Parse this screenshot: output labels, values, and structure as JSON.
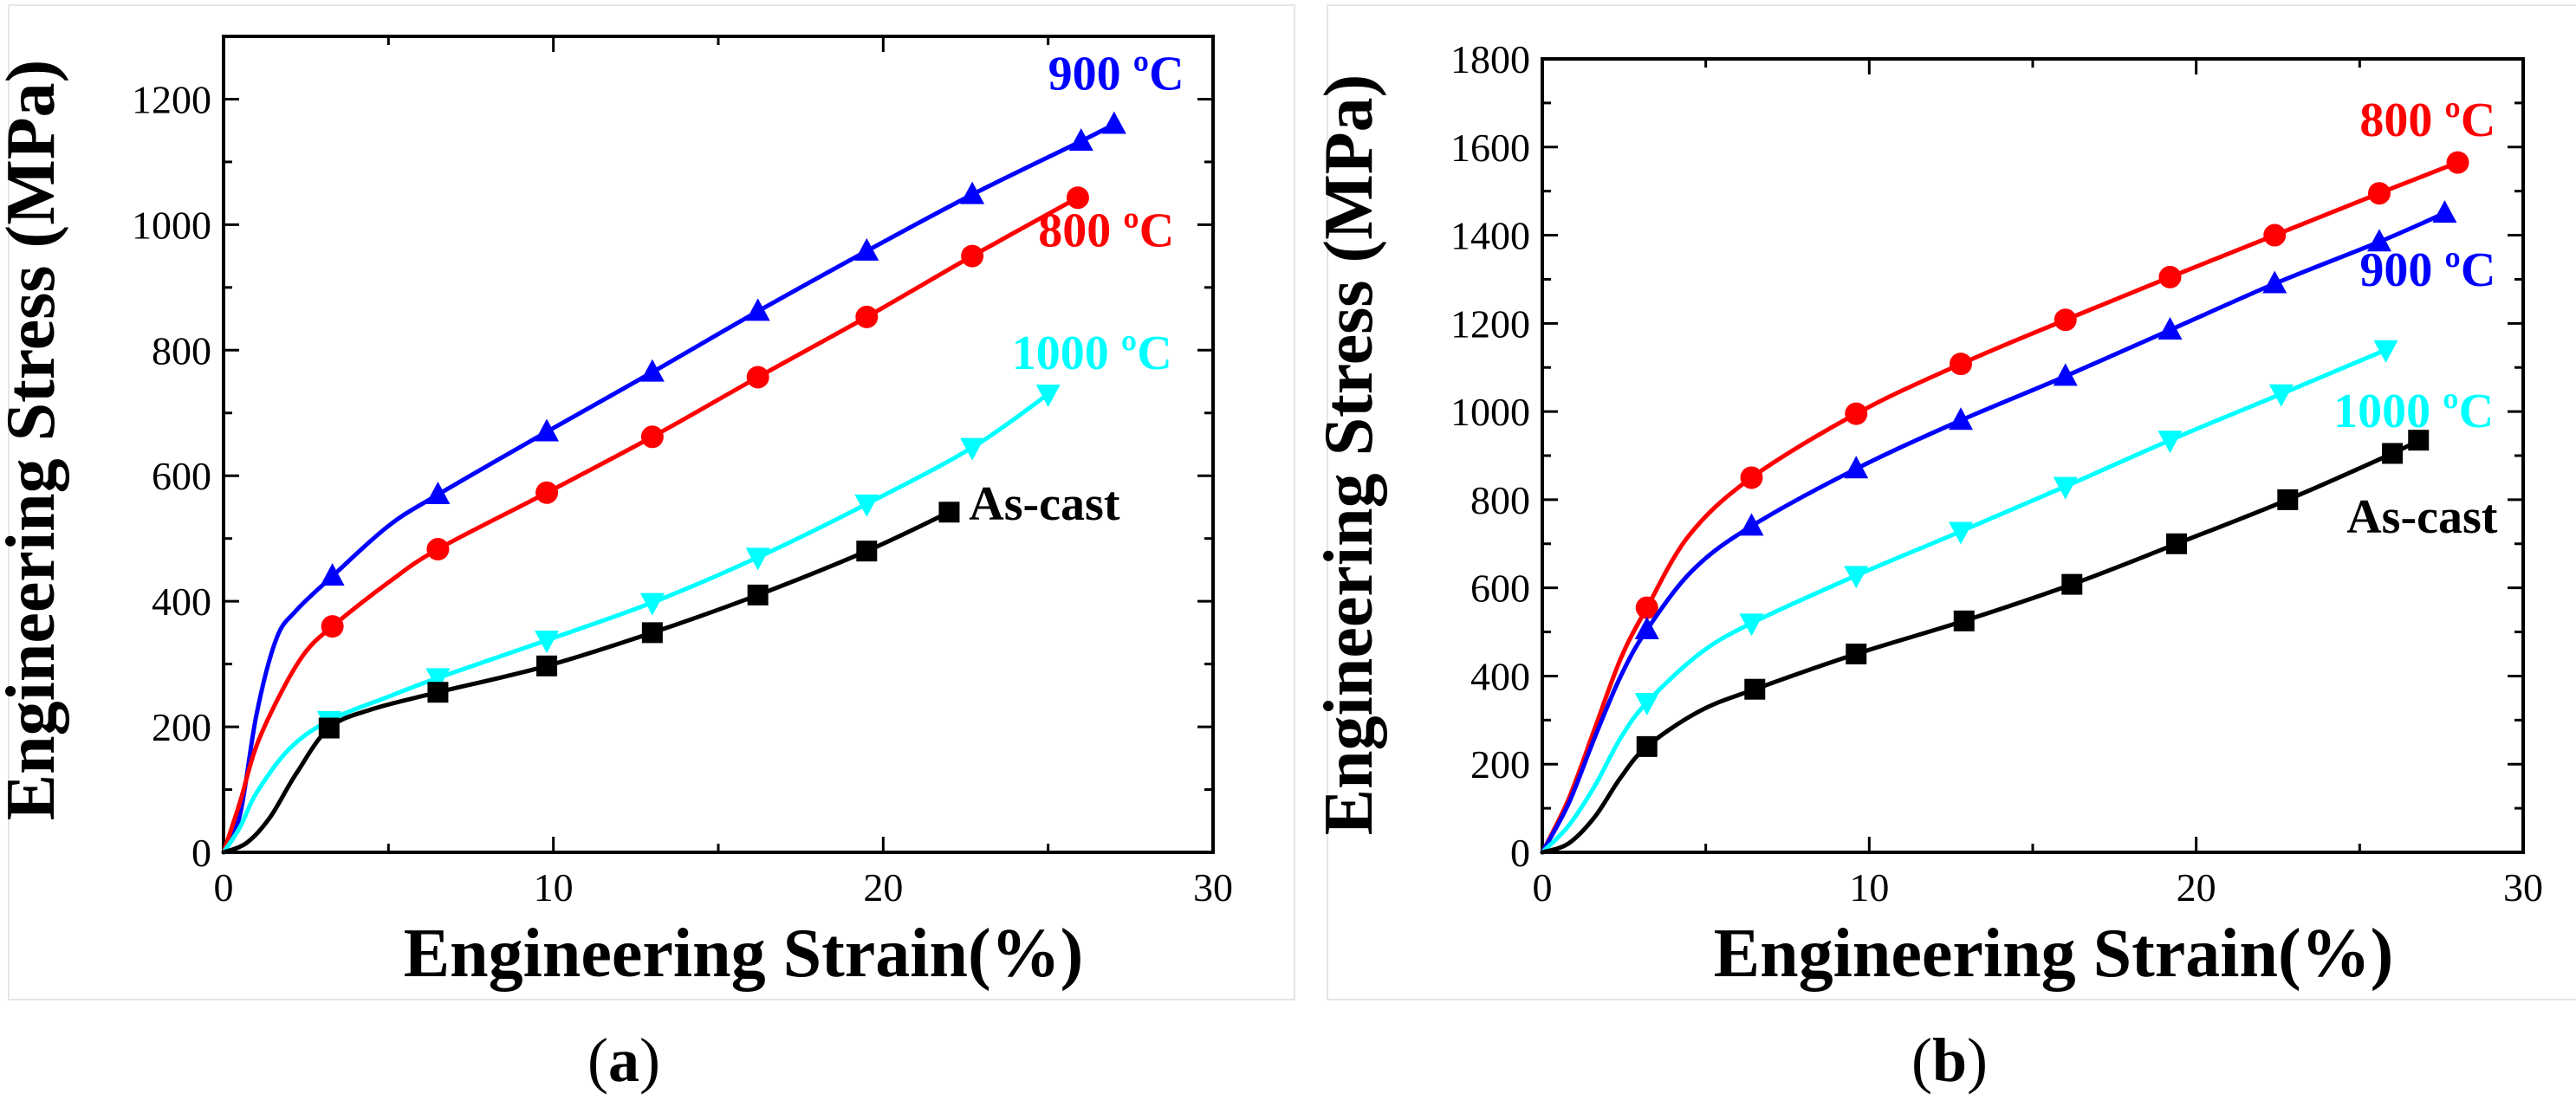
{
  "chart_data": [
    {
      "type": "line",
      "panel": "(a)",
      "panel_open": "(",
      "panel_letter": "a",
      "panel_close": ")",
      "xlabel": "Engineering Strain(%)",
      "ylabel": "Engineering Stress (MPa)",
      "xlim": [
        0,
        30
      ],
      "ylim": [
        0,
        1300
      ],
      "xticks": [
        0,
        10,
        20,
        30
      ],
      "yticks": [
        0,
        200,
        400,
        600,
        800,
        1000,
        1200
      ],
      "series": [
        {
          "name": "900 ºC",
          "label": "900 ºC",
          "color": "#0000ff",
          "marker": "triangle-up",
          "label_at": [
            25.0,
            1215
          ],
          "curve": [
            [
              0,
              0
            ],
            [
              0.5,
              60
            ],
            [
              1.0,
              220
            ],
            [
              1.6,
              340
            ],
            [
              2.2,
              385
            ],
            [
              3.3,
              440
            ],
            [
              5.0,
              520
            ],
            [
              6.5,
              570
            ],
            [
              9.8,
              670
            ],
            [
              13.0,
              765
            ],
            [
              16.2,
              862
            ],
            [
              19.5,
              958
            ],
            [
              22.7,
              1048
            ],
            [
              26.0,
              1133
            ],
            [
              27.0,
              1160
            ]
          ],
          "markers": [
            [
              3.3,
              440
            ],
            [
              6.5,
              570
            ],
            [
              9.8,
              670
            ],
            [
              13.0,
              765
            ],
            [
              16.2,
              862
            ],
            [
              19.5,
              958
            ],
            [
              22.7,
              1048
            ],
            [
              26.0,
              1133
            ],
            [
              27.0,
              1160
            ]
          ]
        },
        {
          "name": "800 ºC",
          "label": "800 ºC",
          "color": "#ff0000",
          "marker": "circle",
          "label_at": [
            24.7,
            965
          ],
          "curve": [
            [
              0,
              0
            ],
            [
              0.5,
              80
            ],
            [
              1.0,
              170
            ],
            [
              1.8,
              260
            ],
            [
              2.5,
              320
            ],
            [
              3.3,
              360
            ],
            [
              5.0,
              430
            ],
            [
              6.5,
              483
            ],
            [
              9.8,
              573
            ],
            [
              13.0,
              662
            ],
            [
              16.2,
              757
            ],
            [
              19.5,
              853
            ],
            [
              22.7,
              950
            ],
            [
              25.9,
              1043
            ]
          ],
          "markers": [
            [
              3.3,
              360
            ],
            [
              6.5,
              483
            ],
            [
              9.8,
              573
            ],
            [
              13.0,
              662
            ],
            [
              16.2,
              757
            ],
            [
              19.5,
              853
            ],
            [
              22.7,
              950
            ],
            [
              25.9,
              1043
            ]
          ]
        },
        {
          "name": "1000 ºC",
          "label": "1000 ºC",
          "color": "#00ffff",
          "marker": "triangle-down",
          "label_at": [
            23.9,
            770
          ],
          "curve": [
            [
              0,
              0
            ],
            [
              0.5,
              40
            ],
            [
              1.0,
              95
            ],
            [
              2.0,
              165
            ],
            [
              3.2,
              210
            ],
            [
              5.0,
              248
            ],
            [
              6.5,
              278
            ],
            [
              9.8,
              338
            ],
            [
              13.0,
              398
            ],
            [
              16.2,
              470
            ],
            [
              19.5,
              555
            ],
            [
              22.7,
              645
            ],
            [
              25.0,
              730
            ]
          ],
          "markers": [
            [
              3.2,
              210
            ],
            [
              6.5,
              278
            ],
            [
              9.8,
              338
            ],
            [
              13.0,
              398
            ],
            [
              16.2,
              470
            ],
            [
              19.5,
              555
            ],
            [
              22.7,
              645
            ],
            [
              25.0,
              730
            ]
          ]
        },
        {
          "name": "As-cast",
          "label": "As-cast",
          "color": "#000000",
          "marker": "square",
          "label_at": [
            22.6,
            530
          ],
          "curve": [
            [
              0,
              0
            ],
            [
              0.7,
              15
            ],
            [
              1.4,
              55
            ],
            [
              2.2,
              125
            ],
            [
              3.2,
              198
            ],
            [
              4.5,
              228
            ],
            [
              6.5,
              255
            ],
            [
              9.8,
              297
            ],
            [
              13.0,
              350
            ],
            [
              16.2,
              410
            ],
            [
              19.5,
              480
            ],
            [
              22.0,
              542
            ]
          ],
          "markers": [
            [
              3.2,
              198
            ],
            [
              6.5,
              255
            ],
            [
              9.8,
              297
            ],
            [
              13.0,
              350
            ],
            [
              16.2,
              410
            ],
            [
              19.5,
              480
            ],
            [
              22.0,
              542
            ]
          ]
        }
      ]
    },
    {
      "type": "line",
      "panel": "(b)",
      "panel_open": "(",
      "panel_letter": "b",
      "panel_close": ")",
      "xlabel": "Engineering Strain(%)",
      "ylabel": "Engineering Stress (MPa)",
      "xlim": [
        0,
        30
      ],
      "ylim": [
        0,
        1800
      ],
      "xticks": [
        0,
        10,
        20,
        30
      ],
      "yticks": [
        0,
        200,
        400,
        600,
        800,
        1000,
        1200,
        1400,
        1600,
        1800
      ],
      "series": [
        {
          "name": "800 ºC",
          "label": "800 ºC",
          "color": "#ff0000",
          "marker": "circle",
          "label_at": [
            25.0,
            1625
          ],
          "curve": [
            [
              0,
              0
            ],
            [
              0.8,
              120
            ],
            [
              1.6,
              280
            ],
            [
              2.4,
              440
            ],
            [
              3.2,
              555
            ],
            [
              4.5,
              720
            ],
            [
              6.4,
              850
            ],
            [
              9.6,
              995
            ],
            [
              12.8,
              1108
            ],
            [
              16.0,
              1208
            ],
            [
              19.2,
              1305
            ],
            [
              22.4,
              1400
            ],
            [
              25.6,
              1495
            ],
            [
              28.0,
              1565
            ]
          ],
          "markers": [
            [
              3.2,
              555
            ],
            [
              6.4,
              850
            ],
            [
              9.6,
              995
            ],
            [
              12.8,
              1108
            ],
            [
              16.0,
              1208
            ],
            [
              19.2,
              1305
            ],
            [
              22.4,
              1400
            ],
            [
              25.6,
              1495
            ],
            [
              28.0,
              1565
            ]
          ]
        },
        {
          "name": "900 ºC",
          "label": "900 ºC",
          "color": "#0000ff",
          "marker": "triangle-up",
          "label_at": [
            25.0,
            1285
          ],
          "curve": [
            [
              0,
              0
            ],
            [
              0.8,
              110
            ],
            [
              1.6,
              260
            ],
            [
              2.4,
              400
            ],
            [
              3.2,
              505
            ],
            [
              4.6,
              640
            ],
            [
              6.4,
              740
            ],
            [
              9.6,
              870
            ],
            [
              12.8,
              980
            ],
            [
              16.0,
              1080
            ],
            [
              19.2,
              1185
            ],
            [
              22.4,
              1290
            ],
            [
              25.6,
              1385
            ],
            [
              27.6,
              1450
            ]
          ],
          "markers": [
            [
              3.2,
              505
            ],
            [
              6.4,
              740
            ],
            [
              9.6,
              870
            ],
            [
              12.8,
              980
            ],
            [
              16.0,
              1080
            ],
            [
              19.2,
              1185
            ],
            [
              22.4,
              1290
            ],
            [
              25.6,
              1385
            ],
            [
              27.6,
              1450
            ]
          ]
        },
        {
          "name": "1000 ºC",
          "label": "1000 ºC",
          "color": "#00ffff",
          "marker": "triangle-down",
          "label_at": [
            24.2,
            965
          ],
          "curve": [
            [
              0,
              0
            ],
            [
              0.8,
              60
            ],
            [
              1.6,
              150
            ],
            [
              2.4,
              260
            ],
            [
              3.2,
              340
            ],
            [
              4.8,
              450
            ],
            [
              6.4,
              520
            ],
            [
              9.6,
              628
            ],
            [
              12.8,
              728
            ],
            [
              16.0,
              830
            ],
            [
              19.2,
              935
            ],
            [
              22.6,
              1040
            ],
            [
              25.8,
              1140
            ]
          ],
          "markers": [
            [
              3.2,
              340
            ],
            [
              6.4,
              520
            ],
            [
              9.6,
              628
            ],
            [
              12.8,
              728
            ],
            [
              16.0,
              830
            ],
            [
              19.2,
              935
            ],
            [
              22.6,
              1040
            ],
            [
              25.8,
              1140
            ]
          ]
        },
        {
          "name": "As-cast",
          "label": "As-cast",
          "color": "#000000",
          "marker": "square",
          "label_at": [
            24.6,
            725
          ],
          "curve": [
            [
              0,
              0
            ],
            [
              0.8,
              20
            ],
            [
              1.6,
              80
            ],
            [
              2.4,
              170
            ],
            [
              3.2,
              240
            ],
            [
              4.8,
              320
            ],
            [
              6.5,
              370
            ],
            [
              9.6,
              450
            ],
            [
              12.9,
              525
            ],
            [
              16.2,
              608
            ],
            [
              19.4,
              700
            ],
            [
              22.8,
              800
            ],
            [
              26.0,
              905
            ],
            [
              26.8,
              935
            ]
          ],
          "markers": [
            [
              3.2,
              240
            ],
            [
              6.5,
              370
            ],
            [
              9.6,
              450
            ],
            [
              12.9,
              525
            ],
            [
              16.2,
              608
            ],
            [
              19.4,
              700
            ],
            [
              22.8,
              800
            ],
            [
              26.0,
              905
            ],
            [
              26.8,
              935
            ]
          ]
        }
      ]
    }
  ]
}
